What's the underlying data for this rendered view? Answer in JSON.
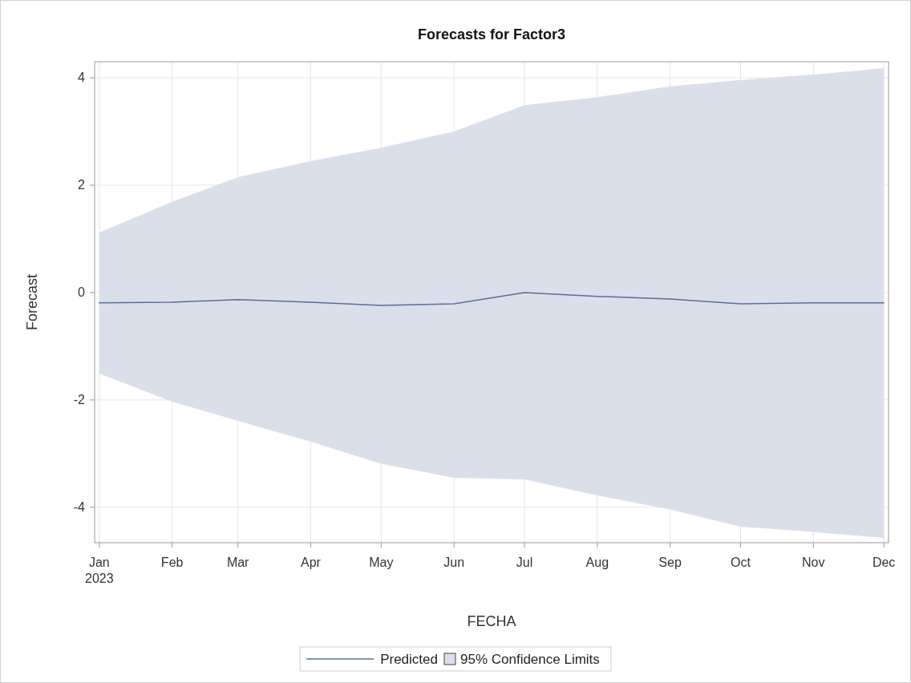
{
  "chart_data": {
    "type": "line",
    "title": "Forecasts for Factor3",
    "xlabel": "FECHA",
    "ylabel": "Forecast",
    "x": [
      "2023-01",
      "2023-02",
      "2023-03",
      "2023-04",
      "2023-05",
      "2023-06",
      "2023-07",
      "2023-08",
      "2023-09",
      "2023-10",
      "2023-11",
      "2023-12"
    ],
    "series": [
      {
        "name": "Predicted",
        "type": "line",
        "color": "#5a6f9a",
        "values": [
          -0.19,
          -0.18,
          -0.13,
          -0.18,
          -0.24,
          -0.21,
          0.0,
          -0.07,
          -0.12,
          -0.21,
          -0.19,
          -0.19
        ],
        "lower": [
          -1.51,
          -2.03,
          -2.39,
          -2.78,
          -3.19,
          -3.45,
          -3.48,
          -3.78,
          -4.04,
          -4.36,
          -4.46,
          -4.57
        ],
        "upper": [
          1.12,
          1.69,
          2.15,
          2.45,
          2.7,
          3.0,
          3.49,
          3.64,
          3.84,
          3.96,
          4.06,
          4.18
        ]
      }
    ],
    "annotations": [
      "95% Confidence Limits"
    ],
    "xlim": [
      "2022-12-30",
      "2023-12-03"
    ],
    "xticks": [
      {
        "value": "2023-01",
        "label": "Jan\n2023"
      },
      {
        "value": "2023-02",
        "label": "Feb"
      },
      {
        "value": "2023-03",
        "label": "Mar"
      },
      {
        "value": "2023-04",
        "label": "Apr"
      },
      {
        "value": "2023-05",
        "label": "May"
      },
      {
        "value": "2023-06",
        "label": "Jun"
      },
      {
        "value": "2023-07",
        "label": "Jul"
      },
      {
        "value": "2023-08",
        "label": "Aug"
      },
      {
        "value": "2023-09",
        "label": "Sep"
      },
      {
        "value": "2023-10",
        "label": "Oct"
      },
      {
        "value": "2023-11",
        "label": "Nov"
      },
      {
        "value": "2023-12",
        "label": "Dec"
      }
    ],
    "ylim": [
      -4.66,
      4.3
    ],
    "yticks": [
      -4,
      -2,
      0,
      2,
      4
    ],
    "grid": true,
    "legend": "bottom",
    "marker": "none",
    "line_style": "solid"
  }
}
